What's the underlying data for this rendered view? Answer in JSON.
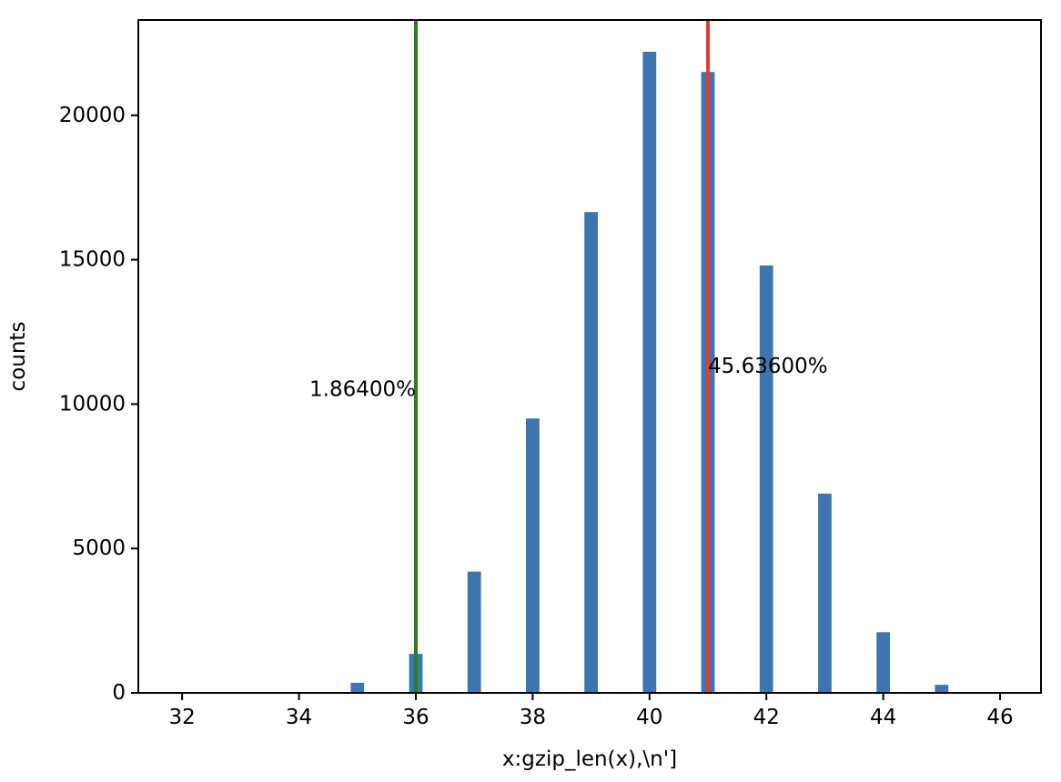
{
  "chart_data": {
    "type": "bar",
    "title": "",
    "xlabel": "x:gzip_len(x),\\n']",
    "ylabel": "counts",
    "xlim": [
      31.25,
      46.7
    ],
    "ylim": [
      0,
      23300
    ],
    "xticks": [
      32,
      34,
      36,
      38,
      40,
      42,
      44,
      46
    ],
    "yticks": [
      0,
      5000,
      10000,
      15000,
      20000
    ],
    "bar_width": 0.23,
    "bars": [
      {
        "x": 34,
        "value": 30
      },
      {
        "x": 35,
        "value": 350
      },
      {
        "x": 36,
        "value": 1350
      },
      {
        "x": 37,
        "value": 4200
      },
      {
        "x": 38,
        "value": 9500
      },
      {
        "x": 39,
        "value": 16650
      },
      {
        "x": 40,
        "value": 22200
      },
      {
        "x": 41,
        "value": 21500
      },
      {
        "x": 42,
        "value": 14800
      },
      {
        "x": 43,
        "value": 6900
      },
      {
        "x": 44,
        "value": 2100
      },
      {
        "x": 45,
        "value": 280
      }
    ],
    "vlines": [
      {
        "x": 36,
        "color": "#2e7d1f"
      },
      {
        "x": 41,
        "color": "#e53a2c"
      }
    ],
    "annotations": [
      {
        "text": "1.86400%",
        "x": 36,
        "y": 10500,
        "align": "end"
      },
      {
        "text": "45.63600%",
        "x": 41,
        "y": 11300,
        "align": "start"
      }
    ],
    "colors": {
      "bar": "#3c75b0"
    },
    "grid": false,
    "legend": "none"
  }
}
